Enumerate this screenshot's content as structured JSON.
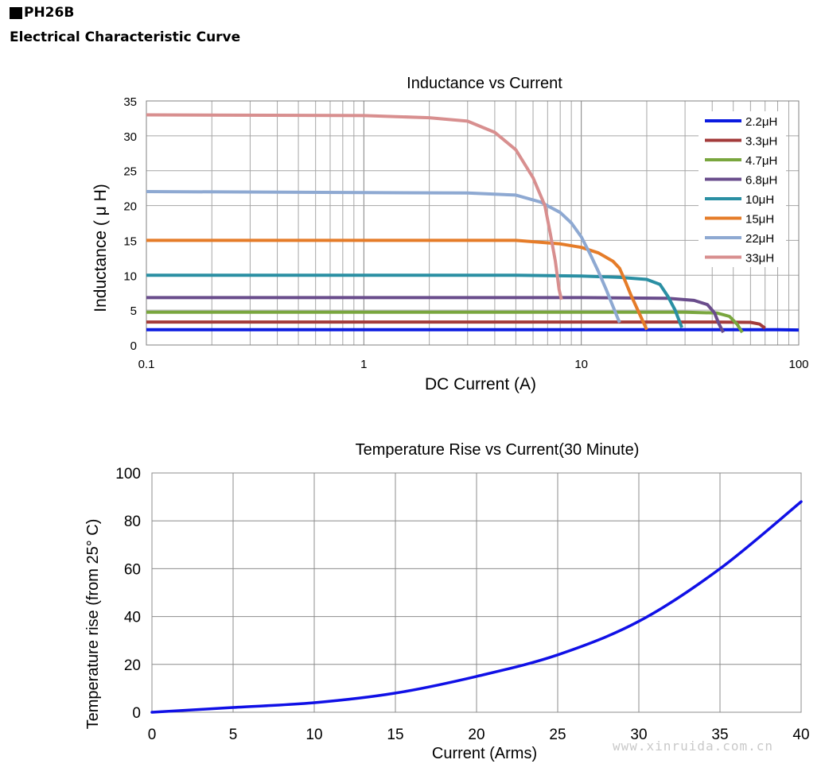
{
  "header": {
    "product_marker": "square-bullet",
    "product": "PH26B",
    "subtitle": "Electrical Characteristic Curve"
  },
  "watermark": "www.xinruida.com.cn",
  "chart_data": [
    {
      "type": "line",
      "title": "Inductance vs Current",
      "xlabel": "DC Current (A)",
      "ylabel": "Inductance ( μ H)",
      "xscale": "log",
      "xlim": [
        0.1,
        100
      ],
      "ylim": [
        0,
        35
      ],
      "xticks": [
        0.1,
        1,
        10,
        100
      ],
      "xtick_labels": [
        "0.1",
        "1",
        "10",
        "100"
      ],
      "yticks": [
        0,
        5,
        10,
        15,
        20,
        25,
        30,
        35
      ],
      "grid": true,
      "legend_position": "top-right",
      "series": [
        {
          "name": "2.2μH",
          "color": "#0b1be0",
          "points": [
            [
              0.1,
              2.2
            ],
            [
              10,
              2.2
            ],
            [
              50,
              2.2
            ],
            [
              80,
              2.2
            ],
            [
              100,
              2.15
            ]
          ]
        },
        {
          "name": "3.3μH",
          "color": "#a33b3b",
          "points": [
            [
              0.1,
              3.3
            ],
            [
              10,
              3.3
            ],
            [
              40,
              3.3
            ],
            [
              60,
              3.25
            ],
            [
              66,
              3.0
            ],
            [
              70,
              2.4
            ]
          ]
        },
        {
          "name": "4.7μH",
          "color": "#79a63e",
          "points": [
            [
              0.1,
              4.7
            ],
            [
              10,
              4.7
            ],
            [
              30,
              4.7
            ],
            [
              42,
              4.6
            ],
            [
              48,
              4.1
            ],
            [
              52,
              3.0
            ],
            [
              55,
              1.8
            ]
          ]
        },
        {
          "name": "6.8μH",
          "color": "#6a4d8c",
          "points": [
            [
              0.1,
              6.8
            ],
            [
              10,
              6.8
            ],
            [
              25,
              6.7
            ],
            [
              33,
              6.4
            ],
            [
              38,
              5.8
            ],
            [
              41,
              4.6
            ],
            [
              43,
              3.0
            ],
            [
              45,
              1.8
            ]
          ]
        },
        {
          "name": "10μH",
          "color": "#2a8fa3",
          "points": [
            [
              0.1,
              10
            ],
            [
              5,
              10
            ],
            [
              10,
              9.9
            ],
            [
              15,
              9.7
            ],
            [
              20,
              9.4
            ],
            [
              23,
              8.7
            ],
            [
              25,
              7.0
            ],
            [
              27,
              5.0
            ],
            [
              29,
              2.5
            ]
          ]
        },
        {
          "name": "15μH",
          "color": "#e57c29",
          "points": [
            [
              0.1,
              15
            ],
            [
              5,
              15
            ],
            [
              8,
              14.5
            ],
            [
              10,
              14
            ],
            [
              12,
              13.2
            ],
            [
              14,
              12
            ],
            [
              15,
              11
            ],
            [
              16,
              9
            ],
            [
              17,
              7
            ],
            [
              18.5,
              4.5
            ],
            [
              20,
              2.2
            ]
          ]
        },
        {
          "name": "22μH",
          "color": "#8ea9d2",
          "points": [
            [
              0.1,
              22
            ],
            [
              3,
              21.8
            ],
            [
              5,
              21.5
            ],
            [
              6.5,
              20.5
            ],
            [
              8,
              19
            ],
            [
              9,
              17.5
            ],
            [
              10,
              15.5
            ],
            [
              11,
              13
            ],
            [
              12,
              10.5
            ],
            [
              13,
              8
            ],
            [
              14,
              5.5
            ],
            [
              15,
              3.2
            ]
          ]
        },
        {
          "name": "33μH",
          "color": "#d88f8f",
          "points": [
            [
              0.1,
              33
            ],
            [
              1,
              32.9
            ],
            [
              2,
              32.6
            ],
            [
              3,
              32.1
            ],
            [
              4,
              30.5
            ],
            [
              5,
              28
            ],
            [
              6,
              24
            ],
            [
              6.8,
              20
            ],
            [
              7.2,
              16
            ],
            [
              7.6,
              12
            ],
            [
              7.9,
              8
            ],
            [
              8.1,
              6.5
            ]
          ]
        }
      ]
    },
    {
      "type": "line",
      "title": "Temperature Rise vs Current(30 Minute)",
      "xlabel": "Current (Arms)",
      "ylabel": "Temperature rise (from 25° C)",
      "xlim": [
        0,
        40
      ],
      "ylim": [
        0,
        100
      ],
      "xticks": [
        0,
        5,
        10,
        15,
        20,
        25,
        30,
        35,
        40
      ],
      "yticks": [
        0,
        20,
        40,
        60,
        80,
        100
      ],
      "grid": true,
      "series": [
        {
          "color": "#1010e6",
          "points": [
            [
              0,
              0
            ],
            [
              5,
              2
            ],
            [
              10,
              4
            ],
            [
              15,
              8
            ],
            [
              20,
              15
            ],
            [
              25,
              24
            ],
            [
              30,
              38
            ],
            [
              35,
              60
            ],
            [
              40,
              88
            ]
          ]
        }
      ]
    }
  ]
}
